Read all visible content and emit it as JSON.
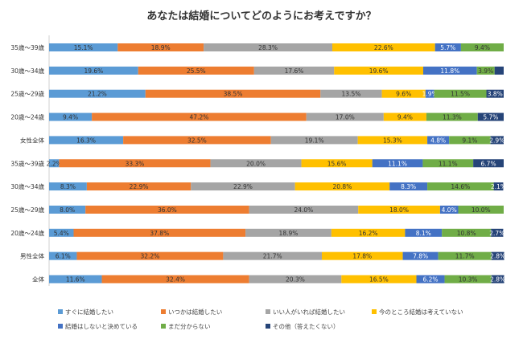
{
  "chart_data": {
    "type": "bar",
    "orientation": "horizontal-stacked-100",
    "title": "あなたは結婚についてどのようにお考えですか？",
    "categories": [
      "35歳〜39歳",
      "30歳〜34歳",
      "25歳〜29歳",
      "20歳〜24歳",
      "女性全体",
      "35歳〜39歳",
      "30歳〜34歳",
      "25歳〜29歳",
      "20歳〜24歳",
      "男性全体",
      "全体"
    ],
    "series": [
      {
        "name": "すぐに結婚したい",
        "color": "#5b9bd5",
        "values": [
          15.1,
          19.6,
          21.2,
          9.4,
          16.3,
          2.2,
          8.3,
          8.0,
          5.4,
          6.1,
          11.6
        ],
        "labels": [
          "15.1%",
          "19.6%",
          "21.2%",
          "9.4%",
          "16.3%",
          "2.2%",
          "8.3%",
          "8.0%",
          "5.4%",
          "6.1%",
          "11.6%"
        ]
      },
      {
        "name": "いつかは結婚したい",
        "color": "#ed7d31",
        "values": [
          18.9,
          25.5,
          38.5,
          47.2,
          32.5,
          33.3,
          22.9,
          36.0,
          37.8,
          32.2,
          32.4
        ],
        "labels": [
          "18.9%",
          "25.5%",
          "38.5%",
          "47.2%",
          "32.5%",
          "33.3%",
          "22.9%",
          "36.0%",
          "37.8%",
          "32.2%",
          "32.4%"
        ]
      },
      {
        "name": "いい人がいれば結婚したい",
        "color": "#a5a5a5",
        "values": [
          28.3,
          17.6,
          13.5,
          17.0,
          19.1,
          20.0,
          22.9,
          24.0,
          18.9,
          21.7,
          20.3
        ],
        "labels": [
          "28.3%",
          "17.6%",
          "13.5%",
          "17.0%",
          "19.1%",
          "20.0%",
          "22.9%",
          "24.0%",
          "18.9%",
          "21.7%",
          "20.3%"
        ]
      },
      {
        "name": "今のところ結婚は考えていない",
        "color": "#ffc000",
        "values": [
          22.6,
          19.6,
          9.6,
          9.4,
          15.3,
          15.6,
          20.8,
          18.0,
          16.2,
          17.8,
          16.5
        ],
        "labels": [
          "22.6%",
          "19.6%",
          "9.6%",
          "9.4%",
          "15.3%",
          "15.6%",
          "20.8%",
          "18.0%",
          "16.2%",
          "17.8%",
          "16.5%"
        ]
      },
      {
        "name": "結婚はしないと決めている",
        "color": "#4472c4",
        "values": [
          5.7,
          11.8,
          1.9,
          0,
          4.8,
          11.1,
          8.3,
          4.0,
          8.1,
          7.8,
          6.2
        ],
        "labels": [
          "5.7%",
          "11.8%",
          "1.9%",
          "",
          "4.8%",
          "11.1%",
          "8.3%",
          "4.0%",
          "8.1%",
          "7.8%",
          "6.2%"
        ]
      },
      {
        "name": "まだ分からない",
        "color": "#70ad47",
        "values": [
          9.4,
          3.9,
          11.5,
          11.3,
          9.1,
          11.1,
          14.6,
          10.0,
          10.8,
          11.7,
          10.3
        ],
        "labels": [
          "9.4%",
          "3.9%",
          "11.5%",
          "11.3%",
          "9.1%",
          "11.1%",
          "14.6%",
          "10.0%",
          "10.8%",
          "11.7%",
          "10.3%"
        ]
      },
      {
        "name": "その他（答えたくない）",
        "color": "#264478",
        "values": [
          0,
          2.0,
          3.8,
          5.7,
          2.9,
          6.7,
          2.1,
          0,
          2.7,
          2.8,
          2.8
        ],
        "labels": [
          "",
          "",
          "3.8%",
          "5.7%",
          "2.9%",
          "6.7%",
          "2.1%",
          "",
          "2.7%",
          "2.8%",
          "2.8%"
        ]
      }
    ],
    "xlim": [
      0,
      100
    ],
    "grid": false,
    "legend": "bottom"
  }
}
